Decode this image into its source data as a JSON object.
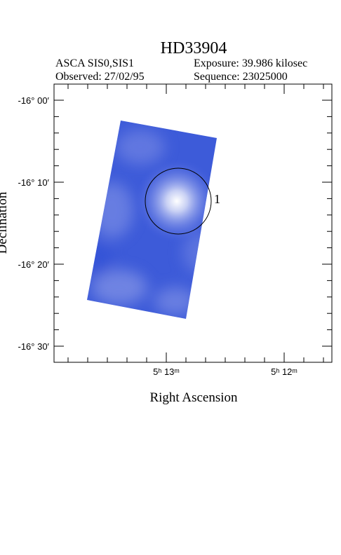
{
  "header": {
    "title": "HD33904",
    "instrument": "ASCA SIS0,SIS1",
    "exposure": "Exposure: 39.986 kilosec",
    "observed": "Observed: 27/02/95",
    "sequence": "Sequence: 23025000"
  },
  "axes": {
    "x_label": "Right Ascension",
    "y_label": "Declination",
    "x_ticks": [
      "5ʰ 13ᵐ",
      "5ʰ 12ᵐ"
    ],
    "y_ticks": [
      "-16° 00′",
      "-16° 10′",
      "-16° 20′",
      "-16° 30′"
    ]
  },
  "sources": [
    {
      "label": "1"
    }
  ]
}
